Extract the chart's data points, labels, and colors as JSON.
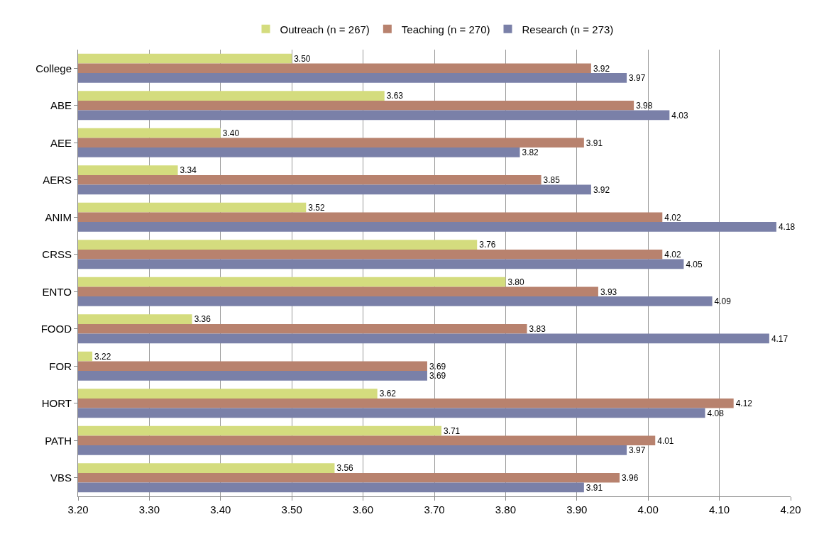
{
  "chart_data": {
    "type": "bar",
    "orientation": "horizontal",
    "categories": [
      "College",
      "ABE",
      "AEE",
      "AERS",
      "ANIM",
      "CRSS",
      "ENTO",
      "FOOD",
      "FOR",
      "HORT",
      "PATH",
      "VBS"
    ],
    "series": [
      {
        "name": "Outreach (n = 267)",
        "color": "#d4dc7e",
        "values": [
          3.5,
          3.63,
          3.4,
          3.34,
          3.52,
          3.76,
          3.8,
          3.36,
          3.22,
          3.62,
          3.71,
          3.56
        ],
        "value_labels": [
          "3.50",
          "3.63",
          "3.40",
          "3.34",
          "3.52",
          "3.76",
          "3.80",
          "3.36",
          "3.22",
          "3.62",
          "3.71",
          "3.56"
        ]
      },
      {
        "name": "Teaching (n = 270)",
        "color": "#b8826e",
        "values": [
          3.92,
          3.98,
          3.91,
          3.85,
          4.02,
          4.02,
          3.93,
          3.83,
          3.69,
          4.12,
          4.01,
          3.96
        ],
        "value_labels": [
          "3.92",
          "3.98",
          "3.91",
          "3.85",
          "4.02",
          "4.02",
          "3.93",
          "3.83",
          "3.69",
          "4.12",
          "4.01",
          "3.96"
        ]
      },
      {
        "name": "Research (n = 273)",
        "color": "#7a80a8",
        "values": [
          3.97,
          4.03,
          3.82,
          3.92,
          4.18,
          4.05,
          4.09,
          4.17,
          3.69,
          4.08,
          3.97,
          3.91
        ],
        "value_labels": [
          "3.97",
          "4.03",
          "3.82",
          "3.92",
          "4.18",
          "4.05",
          "4.09",
          "4.17",
          "3.69",
          "4.08",
          "3.97",
          "3.91"
        ]
      }
    ],
    "xlim": [
      3.2,
      4.2
    ],
    "xticks": [
      {
        "value": 3.2,
        "label": "3.20"
      },
      {
        "value": 3.3,
        "label": "3.30"
      },
      {
        "value": 3.4,
        "label": "3.40"
      },
      {
        "value": 3.5,
        "label": "3.50"
      },
      {
        "value": 3.6,
        "label": "3.60"
      },
      {
        "value": 3.7,
        "label": "3.70"
      },
      {
        "value": 3.8,
        "label": "3.80"
      },
      {
        "value": 3.9,
        "label": "3.90"
      },
      {
        "value": 4.0,
        "label": "4.00"
      },
      {
        "value": 4.1,
        "label": "4.10"
      },
      {
        "value": 4.2,
        "label": "4.20"
      }
    ],
    "grid": "x",
    "legend": "top"
  }
}
